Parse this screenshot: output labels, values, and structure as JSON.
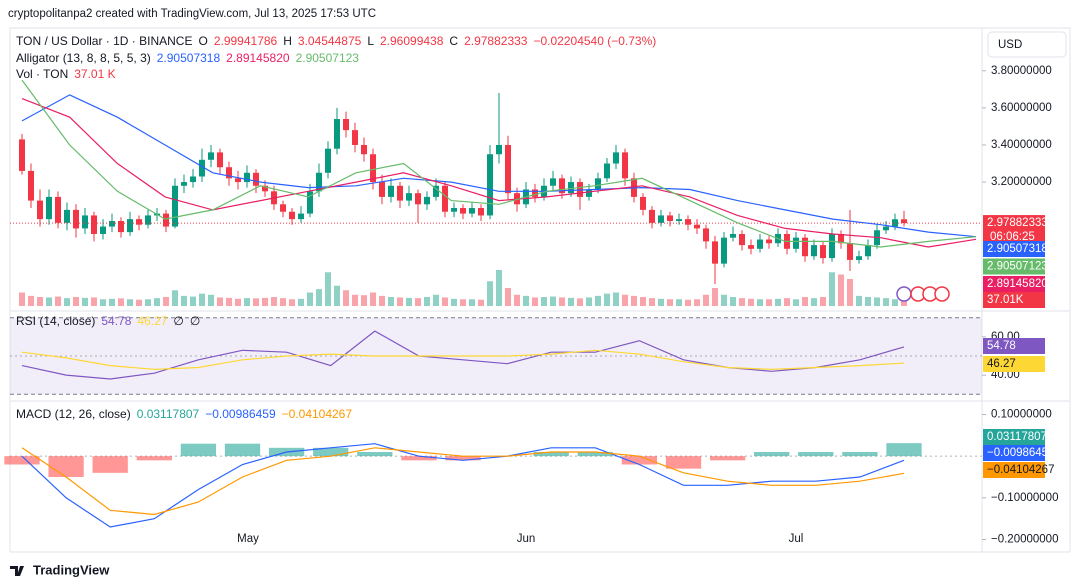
{
  "header": "cryptopolitanpa2 created with TradingView.com, Jul 13, 2025 17:53 UTC",
  "currency": "USD",
  "footer": "TradingView",
  "months": [
    "May",
    "Jun",
    "Jul"
  ],
  "chart_data": [
    {
      "type": "candlestick",
      "title": "TON / US Dollar · 1D · BINANCE",
      "ohlc": [
        {
          "label": "O",
          "value": 2.99941786
        },
        {
          "label": "H",
          "value": 3.04544875
        },
        {
          "label": "L",
          "value": 2.96099438
        },
        {
          "label": "C",
          "value": 2.97882333
        }
      ],
      "change": "−0.02204540 (−0.73%)",
      "countdown": "06:06:25",
      "up_color": "#089981",
      "down_color": "#f23645",
      "ylim": [
        2.51,
        4.02
      ],
      "yticks": [
        {
          "value": 3.8,
          "label": "3.80000000"
        },
        {
          "value": 3.6,
          "label": "3.60000000"
        },
        {
          "value": 3.4,
          "label": "3.40000000"
        },
        {
          "value": 3.2,
          "label": "3.20000000"
        }
      ],
      "candles": [
        [
          3.43,
          3.46,
          3.24,
          3.26
        ],
        [
          3.26,
          3.3,
          3.06,
          3.1
        ],
        [
          3.1,
          3.16,
          2.96,
          3.0
        ],
        [
          3.0,
          3.16,
          2.97,
          3.12
        ],
        [
          3.12,
          3.15,
          2.95,
          2.98
        ],
        [
          2.98,
          3.09,
          2.94,
          3.05
        ],
        [
          3.05,
          3.08,
          2.9,
          2.95
        ],
        [
          2.95,
          3.06,
          2.92,
          3.02
        ],
        [
          3.02,
          3.04,
          2.88,
          2.92
        ],
        [
          2.92,
          3.0,
          2.89,
          2.96
        ],
        [
          2.96,
          3.03,
          2.93,
          2.99
        ],
        [
          2.99,
          3.01,
          2.9,
          2.93
        ],
        [
          2.93,
          3.04,
          2.91,
          3.0
        ],
        [
          3.0,
          3.02,
          2.94,
          2.97
        ],
        [
          2.97,
          3.05,
          2.95,
          3.02
        ],
        [
          3.02,
          3.06,
          2.99,
          3.03
        ],
        [
          3.03,
          3.05,
          2.93,
          2.96
        ],
        [
          2.96,
          3.22,
          2.95,
          3.18
        ],
        [
          3.18,
          3.24,
          3.14,
          3.2
        ],
        [
          3.2,
          3.27,
          3.17,
          3.23
        ],
        [
          3.23,
          3.38,
          3.2,
          3.32
        ],
        [
          3.32,
          3.4,
          3.28,
          3.36
        ],
        [
          3.36,
          3.38,
          3.24,
          3.28
        ],
        [
          3.28,
          3.31,
          3.18,
          3.22
        ],
        [
          3.22,
          3.26,
          3.16,
          3.2
        ],
        [
          3.2,
          3.29,
          3.17,
          3.25
        ],
        [
          3.25,
          3.27,
          3.14,
          3.18
        ],
        [
          3.18,
          3.21,
          3.12,
          3.15
        ],
        [
          3.15,
          3.18,
          3.05,
          3.08
        ],
        [
          3.08,
          3.1,
          3.01,
          3.04
        ],
        [
          3.04,
          3.06,
          2.97,
          3.0
        ],
        [
          3.0,
          3.07,
          2.98,
          3.03
        ],
        [
          3.03,
          3.19,
          3.01,
          3.15
        ],
        [
          3.15,
          3.3,
          3.12,
          3.25
        ],
        [
          3.25,
          3.42,
          3.22,
          3.38
        ],
        [
          3.38,
          3.6,
          3.35,
          3.54
        ],
        [
          3.54,
          3.58,
          3.44,
          3.48
        ],
        [
          3.48,
          3.52,
          3.36,
          3.4
        ],
        [
          3.4,
          3.44,
          3.31,
          3.35
        ],
        [
          3.35,
          3.38,
          3.16,
          3.2
        ],
        [
          3.2,
          3.24,
          3.08,
          3.12
        ],
        [
          3.12,
          3.22,
          3.09,
          3.18
        ],
        [
          3.18,
          3.2,
          3.06,
          3.1
        ],
        [
          3.1,
          3.18,
          3.07,
          3.14
        ],
        [
          3.14,
          3.16,
          2.98,
          3.08
        ],
        [
          3.08,
          3.15,
          3.05,
          3.12
        ],
        [
          3.12,
          3.22,
          3.1,
          3.18
        ],
        [
          3.18,
          3.2,
          3.01,
          3.04
        ],
        [
          3.04,
          3.09,
          3.01,
          3.06
        ],
        [
          3.06,
          3.08,
          3.0,
          3.03
        ],
        [
          3.03,
          3.09,
          3.01,
          3.06
        ],
        [
          3.06,
          3.08,
          2.99,
          3.02
        ],
        [
          3.02,
          3.4,
          3.0,
          3.35
        ],
        [
          3.35,
          3.68,
          3.3,
          3.4
        ],
        [
          3.4,
          3.45,
          3.1,
          3.14
        ],
        [
          3.14,
          3.17,
          3.04,
          3.08
        ],
        [
          3.08,
          3.2,
          3.06,
          3.16
        ],
        [
          3.16,
          3.19,
          3.09,
          3.12
        ],
        [
          3.12,
          3.22,
          3.1,
          3.18
        ],
        [
          3.18,
          3.26,
          3.15,
          3.22
        ],
        [
          3.22,
          3.24,
          3.11,
          3.14
        ],
        [
          3.14,
          3.23,
          3.12,
          3.2
        ],
        [
          3.2,
          3.22,
          3.05,
          3.12
        ],
        [
          3.12,
          3.19,
          3.1,
          3.16
        ],
        [
          3.16,
          3.25,
          3.14,
          3.22
        ],
        [
          3.22,
          3.33,
          3.2,
          3.3
        ],
        [
          3.3,
          3.4,
          3.27,
          3.36
        ],
        [
          3.36,
          3.38,
          3.18,
          3.22
        ],
        [
          3.22,
          3.25,
          3.09,
          3.12
        ],
        [
          3.12,
          3.14,
          3.02,
          3.05
        ],
        [
          3.05,
          3.07,
          2.95,
          2.98
        ],
        [
          2.98,
          3.05,
          2.96,
          3.02
        ],
        [
          3.02,
          3.04,
          2.96,
          2.99
        ],
        [
          2.99,
          3.03,
          2.97,
          3.0
        ],
        [
          3.0,
          3.02,
          2.94,
          2.97
        ],
        [
          2.97,
          3.0,
          2.92,
          2.95
        ],
        [
          2.95,
          2.97,
          2.84,
          2.88
        ],
        [
          2.88,
          2.91,
          2.65,
          2.76
        ],
        [
          2.76,
          2.93,
          2.74,
          2.9
        ],
        [
          2.9,
          2.96,
          2.88,
          2.92
        ],
        [
          2.92,
          2.94,
          2.83,
          2.86
        ],
        [
          2.86,
          2.89,
          2.81,
          2.84
        ],
        [
          2.84,
          2.92,
          2.82,
          2.89
        ],
        [
          2.89,
          2.91,
          2.84,
          2.87
        ],
        [
          2.87,
          2.95,
          2.85,
          2.92
        ],
        [
          2.92,
          2.94,
          2.81,
          2.84
        ],
        [
          2.84,
          2.93,
          2.82,
          2.9
        ],
        [
          2.9,
          2.92,
          2.77,
          2.8
        ],
        [
          2.8,
          2.89,
          2.78,
          2.86
        ],
        [
          2.86,
          2.88,
          2.76,
          2.79
        ],
        [
          2.79,
          2.95,
          2.77,
          2.92
        ],
        [
          2.92,
          2.94,
          2.84,
          2.87
        ],
        [
          2.87,
          3.05,
          2.72,
          2.78
        ],
        [
          2.78,
          2.83,
          2.76,
          2.8
        ],
        [
          2.8,
          2.89,
          2.78,
          2.86
        ],
        [
          2.86,
          2.97,
          2.84,
          2.94
        ],
        [
          2.94,
          2.99,
          2.92,
          2.96
        ],
        [
          2.96,
          3.03,
          2.94,
          2.99941786
        ],
        [
          2.99941786,
          3.04544875,
          2.96099438,
          2.97882333
        ]
      ],
      "volume_title": "Vol · TON",
      "volume_legend": "37.01 K",
      "volume": [
        60,
        45,
        40,
        38,
        42,
        35,
        40,
        36,
        38,
        30,
        32,
        34,
        30,
        28,
        30,
        35,
        40,
        70,
        45,
        42,
        55,
        50,
        38,
        36,
        32,
        35,
        34,
        36,
        40,
        35,
        30,
        32,
        60,
        75,
        150,
        90,
        70,
        50,
        48,
        60,
        45,
        40,
        38,
        36,
        35,
        40,
        50,
        38,
        32,
        30,
        30,
        28,
        110,
        160,
        80,
        50,
        45,
        38,
        40,
        42,
        38,
        36,
        34,
        38,
        45,
        55,
        60,
        50,
        45,
        40,
        35,
        32,
        30,
        30,
        28,
        30,
        50,
        80,
        50,
        40,
        35,
        32,
        30,
        30,
        32,
        35,
        30,
        40,
        35,
        40,
        150,
        140,
        120,
        45,
        40,
        38,
        35,
        30,
        37.01
      ],
      "volume_label": "37.01K",
      "indicator": "Alligator (13, 8, 8, 5, 5, 3)",
      "series": [
        {
          "color": "#2962ff",
          "last": "2.90507318",
          "values": [
            3.53,
            3.67,
            3.55,
            3.4,
            3.25,
            3.2,
            3.17,
            3.18,
            3.22,
            3.2,
            3.15,
            3.15,
            3.16,
            3.17,
            3.16,
            3.1,
            3.05,
            3.0,
            2.97,
            2.93,
            2.90507318
          ]
        },
        {
          "color": "#e91e63",
          "last": "2.89145820",
          "values": [
            3.65,
            3.55,
            3.3,
            3.12,
            3.05,
            3.1,
            3.15,
            3.2,
            3.25,
            3.18,
            3.1,
            3.12,
            3.15,
            3.18,
            3.12,
            3.02,
            2.95,
            2.92,
            2.9,
            2.85,
            2.8914582
          ]
        },
        {
          "color": "#66bb6a",
          "last": "2.90507123",
          "values": [
            3.75,
            3.4,
            3.15,
            3.0,
            3.05,
            3.18,
            3.12,
            3.25,
            3.3,
            3.1,
            3.08,
            3.15,
            3.18,
            3.22,
            3.1,
            2.98,
            2.88,
            2.88,
            2.85,
            2.88,
            2.90507123
          ]
        }
      ]
    },
    {
      "type": "line",
      "title": "RSI (14, close)",
      "extras": [
        "∅",
        "∅"
      ],
      "ylim": [
        27,
        73
      ],
      "yticks": [
        {
          "value": 60,
          "label": "60.00"
        },
        {
          "value": 40,
          "label": "40.00"
        }
      ],
      "bands": [
        70,
        30
      ],
      "midline": 50,
      "band_color": "#7e57c2",
      "series": [
        {
          "color": "#7e57c2",
          "last": "54.78",
          "values": [
            45,
            40,
            38,
            41,
            48,
            53,
            52,
            45,
            63,
            50,
            48,
            46,
            52,
            52,
            58,
            48,
            44,
            42,
            44,
            48,
            54.78
          ]
        },
        {
          "color": "#fdd835",
          "last": "46.27",
          "values": [
            52,
            49,
            45,
            43,
            44,
            48,
            50,
            51,
            50,
            50,
            50,
            50,
            51,
            53,
            51,
            47,
            44,
            43,
            44,
            45,
            46.27
          ]
        }
      ]
    },
    {
      "type": "macd",
      "title": "MACD (12, 26, close)",
      "ylim": [
        -0.23,
        0.13
      ],
      "yticks": [
        {
          "value": 0.1,
          "label": "0.10000000"
        },
        {
          "value": -0.1,
          "label": "−0.10000000"
        },
        {
          "value": -0.2,
          "label": "−0.20000000"
        }
      ],
      "zero": 0,
      "histogram": {
        "up_color": "#26a69a",
        "down_color": "#ff5252",
        "last": "0.03117807",
        "values": [
          -0.02,
          -0.05,
          -0.04,
          -0.01,
          0.03,
          0.03,
          0.02,
          0.02,
          0.01,
          -0.01,
          -0.01,
          0.0,
          0.01,
          0.01,
          -0.02,
          -0.03,
          -0.01,
          0.01,
          0.01,
          0.01,
          0.03117807
        ]
      },
      "series": [
        {
          "color": "#2962ff",
          "last": "−0.00986459",
          "values": [
            0.0,
            -0.1,
            -0.17,
            -0.15,
            -0.08,
            -0.02,
            0.01,
            0.02,
            0.03,
            0.0,
            -0.01,
            0.0,
            0.02,
            0.02,
            -0.02,
            -0.07,
            -0.07,
            -0.06,
            -0.06,
            -0.05,
            -0.00986459
          ]
        },
        {
          "color": "#ff9800",
          "last": "−0.04104267",
          "values": [
            0.02,
            -0.05,
            -0.13,
            -0.14,
            -0.11,
            -0.05,
            -0.01,
            0.0,
            0.02,
            0.01,
            0.0,
            0.0,
            0.01,
            0.01,
            0.0,
            -0.04,
            -0.06,
            -0.07,
            -0.07,
            -0.06,
            -0.04104267
          ]
        }
      ]
    }
  ]
}
